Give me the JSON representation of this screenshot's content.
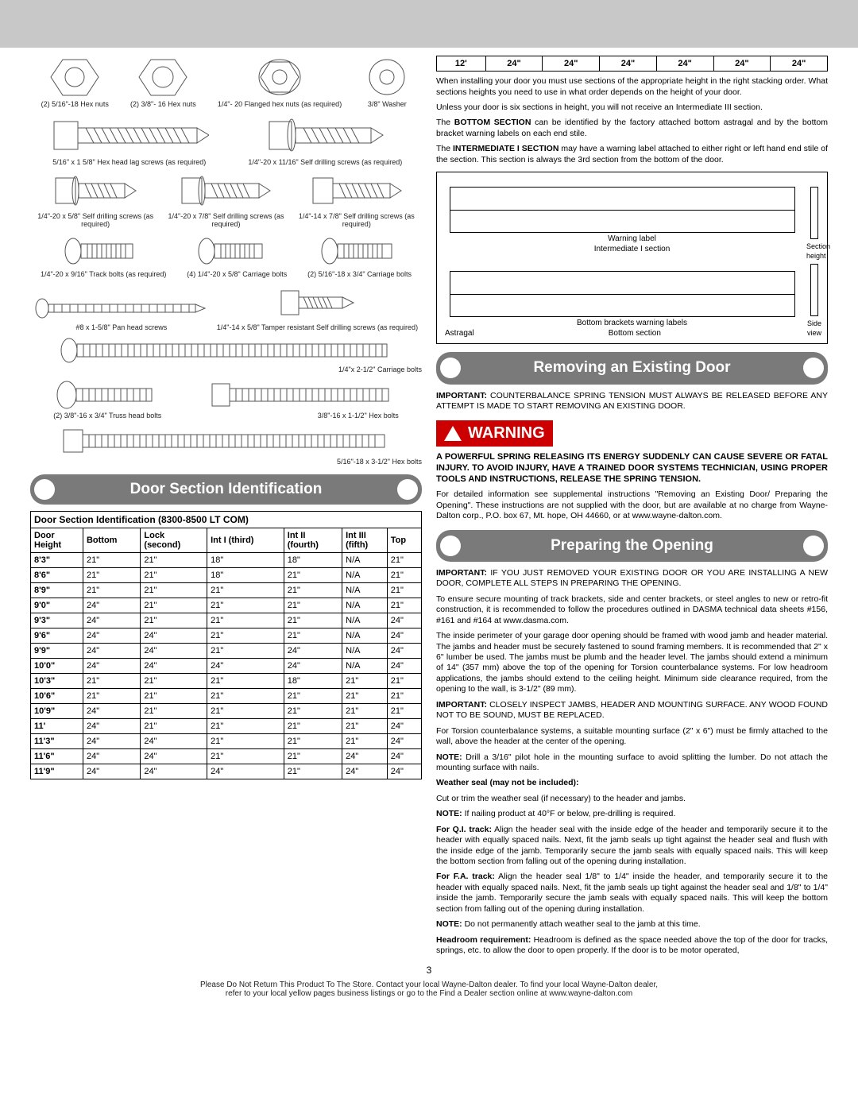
{
  "hardware": [
    {
      "label": "(2) 5/16\"-18 Hex nuts"
    },
    {
      "label": "(2) 3/8\"- 16 Hex nuts"
    },
    {
      "label": "1/4\"- 20 Flanged\nhex nuts (as required)"
    },
    {
      "label": "3/8\" Washer"
    },
    {
      "label": "5/16\" x 1 5/8\" Hex head lag screws\n(as required)"
    },
    {
      "label": "1/4\"-20 x 11/16\" Self\ndrilling screws (as required)"
    },
    {
      "label": "1/4\"-20 x 5/8\" Self\ndrilling screws (as required)"
    },
    {
      "label": "1/4\"-20 x 7/8\" Self\ndrilling screws (as required)"
    },
    {
      "label": "1/4\"-14 x 7/8\" Self\ndrilling screws (as required)"
    },
    {
      "label": "1/4\"-20 x 9/16\"\nTrack bolts (as required)"
    },
    {
      "label": "(4) 1/4\"-20 x 5/8\"\nCarriage bolts"
    },
    {
      "label": "(2) 5/16\"-18 x 3/4\"\nCarriage bolts"
    },
    {
      "label": "#8 x 1-5/8\" Pan head screws"
    },
    {
      "label": "1/4\"-14 x 5/8\"\nTamper resistant Self\ndrilling screws (as required)"
    },
    {
      "label": "1/4\"x 2-1/2\" Carriage bolts"
    },
    {
      "label": "(2) 3/8\"-16 x 3/4\"\nTruss head bolts"
    },
    {
      "label": "3/8\"-16 x 1-1/2\" Hex bolts"
    },
    {
      "label": "5/16\"-18 x 3-1/2\" Hex bolts"
    }
  ],
  "left_header": "Door Section Identification",
  "table_title": "Door Section Identification (8300-8500 LT COM)",
  "table_cols": [
    "Door\nHeight",
    "Bottom",
    "Lock\n(second)",
    "Int I (third)",
    "Int II\n(fourth)",
    "Int III\n(fifth)",
    "Top"
  ],
  "table_rows": [
    [
      "8'3\"",
      "21\"",
      "21\"",
      "18\"",
      "18\"",
      "N/A",
      "21\""
    ],
    [
      "8'6\"",
      "21\"",
      "21\"",
      "18\"",
      "21\"",
      "N/A",
      "21\""
    ],
    [
      "8'9\"",
      "21\"",
      "21\"",
      "21\"",
      "21\"",
      "N/A",
      "21\""
    ],
    [
      "9'0\"",
      "24\"",
      "21\"",
      "21\"",
      "21\"",
      "N/A",
      "21\""
    ],
    [
      "9'3\"",
      "24\"",
      "21\"",
      "21\"",
      "21\"",
      "N/A",
      "24\""
    ],
    [
      "9'6\"",
      "24\"",
      "24\"",
      "21\"",
      "21\"",
      "N/A",
      "24\""
    ],
    [
      "9'9\"",
      "24\"",
      "24\"",
      "21\"",
      "24\"",
      "N/A",
      "24\""
    ],
    [
      "10'0\"",
      "24\"",
      "24\"",
      "24\"",
      "24\"",
      "N/A",
      "24\""
    ],
    [
      "10'3\"",
      "21\"",
      "21\"",
      "21\"",
      "18\"",
      "21\"",
      "21\""
    ],
    [
      "10'6\"",
      "21\"",
      "21\"",
      "21\"",
      "21\"",
      "21\"",
      "21\""
    ],
    [
      "10'9\"",
      "24\"",
      "21\"",
      "21\"",
      "21\"",
      "21\"",
      "21\""
    ],
    [
      "11'",
      "24\"",
      "21\"",
      "21\"",
      "21\"",
      "21\"",
      "24\""
    ],
    [
      "11'3\"",
      "24\"",
      "24\"",
      "21\"",
      "21\"",
      "21\"",
      "24\""
    ],
    [
      "11'6\"",
      "24\"",
      "24\"",
      "21\"",
      "21\"",
      "24\"",
      "24\""
    ],
    [
      "11'9\"",
      "24\"",
      "24\"",
      "24\"",
      "21\"",
      "24\"",
      "24\""
    ]
  ],
  "top_row": [
    "12'",
    "24\"",
    "24\"",
    "24\"",
    "24\"",
    "24\"",
    "24\""
  ],
  "r": {
    "p1": "When installing your door you must use sections of the appropriate height in the right stacking order. What sections heights you need to use in what order depends on the height of your door.",
    "p2": "Unless your door is six sections in height, you will not receive an Intermediate III section.",
    "p3a": "The ",
    "p3b": "BOTTOM SECTION",
    "p3c": " can be identified by the factory attached bottom astragal and by the bottom bracket warning labels on each end stile.",
    "p4a": "The ",
    "p4b": "INTERMEDIATE I SECTION",
    "p4c": " may have a warning label attached to either right or left hand end stile of the section. This section is always the 3rd section from the bottom of the door.",
    "d_warn": "Warning label",
    "d_int": "Intermediate I section",
    "d_sh": "Section\nheight",
    "d_bbwl": "Bottom brackets warning labels",
    "d_bs": "Bottom section",
    "d_ast": "Astragal",
    "d_sv": "Side view",
    "h1": "Removing an Existing Door",
    "imp1a": "IMPORTANT:",
    "imp1b": " COUNTERBALANCE SPRING TENSION MUST ALWAYS BE RELEASED BEFORE ANY ATTEMPT IS MADE TO START REMOVING AN EXISTING DOOR.",
    "warn_word": "WARNING",
    "warn_body": "A POWERFUL SPRING RELEASING ITS ENERGY SUDDENLY CAN CAUSE SEVERE OR FATAL INJURY. TO AVOID INJURY, HAVE A TRAINED DOOR SYSTEMS TECHNICIAN, USING PROPER TOOLS AND INSTRUCTIONS, RELEASE THE SPRING TENSION.",
    "p5": "For detailed information see supplemental instructions \"Removing an Existing Door/ Preparing the Opening\". These instructions are not supplied with the door, but are available at no charge from Wayne-Dalton corp., P.O. box 67, Mt. hope, OH 44660, or at www.wayne-dalton.com.",
    "h2": "Preparing the Opening",
    "imp2a": "IMPORTANT:",
    "imp2b": " IF YOU JUST REMOVED YOUR EXISTING DOOR OR YOU ARE INSTALLING A NEW DOOR, COMPLETE ALL STEPS IN PREPARING THE OPENING.",
    "p6": "To ensure secure mounting of track brackets, side and center brackets, or steel angles to new or retro-fit construction, it is recommended to follow the procedures outlined in DASMA technical data sheets #156, #161 and #164 at www.dasma.com.",
    "p7": "The inside perimeter of your garage door opening should be framed with wood jamb and header material. The jambs and header must be securely fastened to sound framing members. It is recommended that 2\" x 6\" lumber be used. The jambs must be plumb and the header level. The jambs should extend a minimum of 14\" (357 mm) above the top of the opening for Torsion counterbalance systems. For low headroom applications, the jambs should extend to the ceiling height. Minimum side clearance required, from the opening to the wall, is 3-1/2\" (89 mm).",
    "imp3a": "IMPORTANT:",
    "imp3b": " CLOSELY INSPECT JAMBS, HEADER AND MOUNTING SURFACE. ANY WOOD FOUND NOT TO BE SOUND, MUST BE REPLACED.",
    "p8": "For Torsion counterbalance systems, a suitable mounting surface (2\" x 6\") must be firmly attached to the wall, above the header at the center of the opening.",
    "n1a": "NOTE:",
    "n1b": " Drill a 3/16\" pilot hole in the mounting surface to avoid splitting the lumber. Do not attach the mounting surface with nails.",
    "ws": "Weather seal (may not be included):",
    "p9": "Cut or trim the weather seal (if necessary) to the header and jambs.",
    "n2a": "NOTE:",
    "n2b": " If nailing product at 40°F or below, pre-drilling is required.",
    "qi_a": "For Q.I. track:",
    "qi_b": " Align the header seal with the inside edge of the header and temporarily secure it to the header with equally spaced nails. Next, fit the jamb seals up tight against the header seal and flush with the inside edge of the jamb. Temporarily secure the jamb seals with equally spaced nails. This will keep the bottom section from falling out of the opening during installation.",
    "fa_a": "For F.A. track:",
    "fa_b": " Align the header seal 1/8\" to 1/4\" inside the header, and temporarily secure it to the header with equally spaced nails. Next, fit the jamb seals up tight against the header seal and 1/8\" to 1/4\" inside the jamb. Temporarily secure the jamb seals with equally spaced nails. This will keep the bottom section from falling out of the opening during installation.",
    "n3a": "NOTE:",
    "n3b": " Do not permanently attach weather seal to the jamb at this time.",
    "hr_a": "Headroom requirement:",
    "hr_b": " Headroom is defined as the space needed above the top of the door for tracks, springs, etc. to allow the door to open properly. If the door is to be motor operated,"
  },
  "page_num": "3",
  "footer1": "Please Do Not Return This Product To The Store. Contact your local Wayne-Dalton dealer. To find your local Wayne-Dalton dealer,",
  "footer2": "refer to your local yellow pages business listings or go to the Find a Dealer section online at www.wayne-dalton.com"
}
